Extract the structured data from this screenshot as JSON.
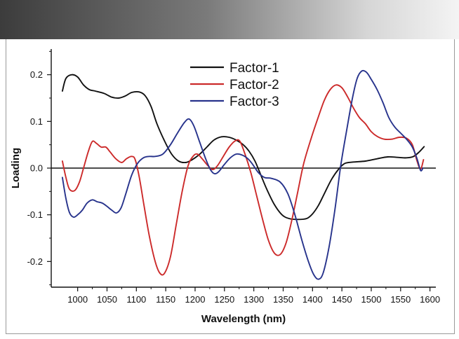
{
  "chart_data": {
    "type": "line",
    "title": "",
    "xlabel": "Wavelength (nm)",
    "ylabel": "Loading",
    "xlim": [
      955,
      1610
    ],
    "ylim": [
      -0.255,
      0.255
    ],
    "xticks": [
      1000,
      1050,
      1100,
      1150,
      1200,
      1250,
      1300,
      1350,
      1400,
      1450,
      1500,
      1550,
      1600
    ],
    "xtick_labels": [
      "1000",
      "1050",
      "1100",
      "1150",
      "1200",
      "1250",
      "1300",
      "1350",
      "1400",
      "1450",
      "1500",
      "1550",
      "1600"
    ],
    "yticks": [
      -0.2,
      -0.1,
      0.0,
      0.1,
      0.2
    ],
    "ytick_labels": [
      "-0.2",
      "-0.1",
      "0.0",
      "0.1",
      "0.2"
    ],
    "zero_line": true,
    "grid": false,
    "legend_position": "top-center",
    "series": [
      {
        "name": "Factor-1",
        "color": "#111111",
        "points": [
          [
            974,
            0.165
          ],
          [
            980,
            0.192
          ],
          [
            990,
            0.2
          ],
          [
            1000,
            0.195
          ],
          [
            1010,
            0.178
          ],
          [
            1020,
            0.168
          ],
          [
            1030,
            0.165
          ],
          [
            1045,
            0.16
          ],
          [
            1058,
            0.152
          ],
          [
            1070,
            0.15
          ],
          [
            1082,
            0.155
          ],
          [
            1092,
            0.162
          ],
          [
            1105,
            0.163
          ],
          [
            1115,
            0.155
          ],
          [
            1125,
            0.132
          ],
          [
            1135,
            0.095
          ],
          [
            1148,
            0.058
          ],
          [
            1160,
            0.03
          ],
          [
            1172,
            0.015
          ],
          [
            1184,
            0.012
          ],
          [
            1195,
            0.018
          ],
          [
            1208,
            0.03
          ],
          [
            1220,
            0.045
          ],
          [
            1232,
            0.06
          ],
          [
            1245,
            0.067
          ],
          [
            1258,
            0.066
          ],
          [
            1270,
            0.06
          ],
          [
            1282,
            0.05
          ],
          [
            1292,
            0.036
          ],
          [
            1302,
            0.015
          ],
          [
            1312,
            -0.015
          ],
          [
            1322,
            -0.045
          ],
          [
            1335,
            -0.078
          ],
          [
            1348,
            -0.1
          ],
          [
            1360,
            -0.108
          ],
          [
            1375,
            -0.11
          ],
          [
            1390,
            -0.108
          ],
          [
            1400,
            -0.098
          ],
          [
            1410,
            -0.08
          ],
          [
            1420,
            -0.055
          ],
          [
            1432,
            -0.025
          ],
          [
            1444,
            -0.003
          ],
          [
            1455,
            0.01
          ],
          [
            1470,
            0.013
          ],
          [
            1490,
            0.015
          ],
          [
            1510,
            0.02
          ],
          [
            1528,
            0.024
          ],
          [
            1545,
            0.023
          ],
          [
            1560,
            0.022
          ],
          [
            1572,
            0.025
          ],
          [
            1582,
            0.035
          ],
          [
            1590,
            0.046
          ]
        ]
      },
      {
        "name": "Factor-2",
        "color": "#cc2a2a",
        "points": [
          [
            974,
            0.015
          ],
          [
            980,
            -0.02
          ],
          [
            986,
            -0.045
          ],
          [
            995,
            -0.048
          ],
          [
            1003,
            -0.03
          ],
          [
            1010,
            0.0
          ],
          [
            1018,
            0.035
          ],
          [
            1025,
            0.057
          ],
          [
            1032,
            0.053
          ],
          [
            1040,
            0.045
          ],
          [
            1048,
            0.045
          ],
          [
            1055,
            0.035
          ],
          [
            1065,
            0.02
          ],
          [
            1075,
            0.012
          ],
          [
            1083,
            0.02
          ],
          [
            1092,
            0.025
          ],
          [
            1098,
            0.018
          ],
          [
            1105,
            -0.02
          ],
          [
            1113,
            -0.08
          ],
          [
            1122,
            -0.145
          ],
          [
            1132,
            -0.2
          ],
          [
            1140,
            -0.225
          ],
          [
            1148,
            -0.225
          ],
          [
            1158,
            -0.19
          ],
          [
            1168,
            -0.12
          ],
          [
            1178,
            -0.05
          ],
          [
            1188,
            0.005
          ],
          [
            1197,
            0.026
          ],
          [
            1204,
            0.03
          ],
          [
            1212,
            0.02
          ],
          [
            1222,
            0.005
          ],
          [
            1230,
            -0.003
          ],
          [
            1238,
            0.005
          ],
          [
            1248,
            0.025
          ],
          [
            1258,
            0.045
          ],
          [
            1268,
            0.058
          ],
          [
            1276,
            0.058
          ],
          [
            1285,
            0.03
          ],
          [
            1295,
            -0.01
          ],
          [
            1305,
            -0.06
          ],
          [
            1315,
            -0.11
          ],
          [
            1325,
            -0.155
          ],
          [
            1335,
            -0.182
          ],
          [
            1345,
            -0.185
          ],
          [
            1355,
            -0.16
          ],
          [
            1365,
            -0.11
          ],
          [
            1375,
            -0.05
          ],
          [
            1385,
            0.01
          ],
          [
            1398,
            0.065
          ],
          [
            1410,
            0.11
          ],
          [
            1420,
            0.145
          ],
          [
            1430,
            0.168
          ],
          [
            1440,
            0.178
          ],
          [
            1450,
            0.172
          ],
          [
            1460,
            0.152
          ],
          [
            1470,
            0.128
          ],
          [
            1480,
            0.108
          ],
          [
            1490,
            0.095
          ],
          [
            1500,
            0.078
          ],
          [
            1510,
            0.068
          ],
          [
            1522,
            0.062
          ],
          [
            1535,
            0.062
          ],
          [
            1548,
            0.066
          ],
          [
            1560,
            0.064
          ],
          [
            1570,
            0.05
          ],
          [
            1578,
            0.015
          ],
          [
            1584,
            -0.002
          ],
          [
            1589,
            0.018
          ]
        ]
      },
      {
        "name": "Factor-3",
        "color": "#27338c",
        "points": [
          [
            974,
            -0.02
          ],
          [
            980,
            -0.065
          ],
          [
            986,
            -0.095
          ],
          [
            993,
            -0.105
          ],
          [
            1000,
            -0.1
          ],
          [
            1008,
            -0.09
          ],
          [
            1016,
            -0.075
          ],
          [
            1025,
            -0.068
          ],
          [
            1033,
            -0.072
          ],
          [
            1042,
            -0.075
          ],
          [
            1050,
            -0.082
          ],
          [
            1058,
            -0.09
          ],
          [
            1066,
            -0.096
          ],
          [
            1074,
            -0.085
          ],
          [
            1082,
            -0.055
          ],
          [
            1092,
            -0.015
          ],
          [
            1102,
            0.01
          ],
          [
            1112,
            0.022
          ],
          [
            1122,
            0.025
          ],
          [
            1132,
            0.025
          ],
          [
            1145,
            0.03
          ],
          [
            1158,
            0.05
          ],
          [
            1170,
            0.075
          ],
          [
            1182,
            0.098
          ],
          [
            1190,
            0.105
          ],
          [
            1198,
            0.09
          ],
          [
            1208,
            0.055
          ],
          [
            1218,
            0.02
          ],
          [
            1226,
            -0.003
          ],
          [
            1233,
            -0.012
          ],
          [
            1240,
            -0.008
          ],
          [
            1250,
            0.008
          ],
          [
            1260,
            0.022
          ],
          [
            1270,
            0.03
          ],
          [
            1280,
            0.028
          ],
          [
            1290,
            0.02
          ],
          [
            1298,
            0.008
          ],
          [
            1308,
            -0.01
          ],
          [
            1318,
            -0.02
          ],
          [
            1330,
            -0.022
          ],
          [
            1345,
            -0.03
          ],
          [
            1358,
            -0.055
          ],
          [
            1370,
            -0.1
          ],
          [
            1382,
            -0.155
          ],
          [
            1393,
            -0.2
          ],
          [
            1402,
            -0.228
          ],
          [
            1410,
            -0.238
          ],
          [
            1418,
            -0.225
          ],
          [
            1428,
            -0.17
          ],
          [
            1438,
            -0.09
          ],
          [
            1448,
            0.005
          ],
          [
            1458,
            0.08
          ],
          [
            1468,
            0.15
          ],
          [
            1476,
            0.192
          ],
          [
            1484,
            0.208
          ],
          [
            1492,
            0.205
          ],
          [
            1500,
            0.19
          ],
          [
            1510,
            0.168
          ],
          [
            1520,
            0.14
          ],
          [
            1530,
            0.108
          ],
          [
            1540,
            0.088
          ],
          [
            1550,
            0.075
          ],
          [
            1560,
            0.062
          ],
          [
            1570,
            0.045
          ],
          [
            1578,
            0.02
          ],
          [
            1584,
            -0.005
          ],
          [
            1588,
            0.0
          ]
        ]
      }
    ]
  }
}
